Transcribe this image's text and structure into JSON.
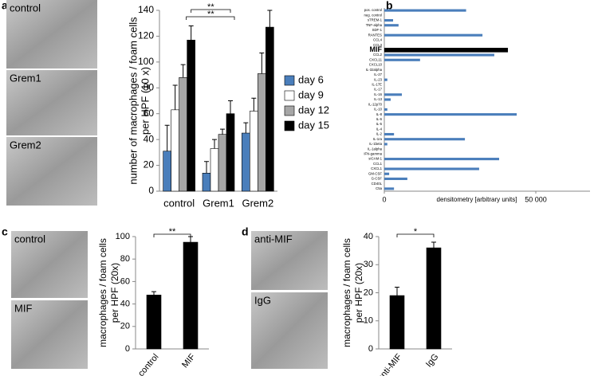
{
  "panel_labels": [
    "a",
    "b",
    "c",
    "d"
  ],
  "micrographs": {
    "a": [
      "control",
      "Grem1",
      "Grem2"
    ],
    "c": [
      "control",
      "MIF"
    ],
    "d": [
      "anti-MIF",
      "IgG"
    ]
  },
  "chart_data": [
    {
      "type": "bar",
      "ylabel": [
        "number of macrophages / foam cells",
        "per HPF (10 x)"
      ],
      "categories": [
        "control",
        "Grem1",
        "Grem2"
      ],
      "series": [
        {
          "name": "day 6",
          "color": "#4a7ebb",
          "values": [
            31,
            14,
            45
          ],
          "errors": [
            20,
            9,
            8
          ]
        },
        {
          "name": "day 9",
          "color": "#ffffff",
          "values": [
            63,
            33,
            62
          ],
          "errors": [
            19,
            7,
            10
          ]
        },
        {
          "name": "day 12",
          "color": "#a6a6a6",
          "values": [
            88,
            44,
            91
          ],
          "errors": [
            10,
            4,
            16
          ]
        },
        {
          "name": "day 15",
          "color": "#000000",
          "values": [
            117,
            60,
            127
          ],
          "errors": [
            11,
            10,
            13
          ]
        }
      ],
      "ylim": [
        0,
        140
      ],
      "yticks": [
        0,
        20,
        40,
        60,
        80,
        100,
        120,
        140
      ],
      "annotations": [
        "**",
        "**"
      ]
    },
    {
      "type": "hbar",
      "xlabel": "densitometry [arbitrary units]",
      "categories": [
        "pos. control",
        "neg. control",
        "sTREM-1",
        "TNF-alpha",
        "SDF-1",
        "RANTES",
        "CCL4",
        "CCL3",
        "MIF",
        "CCL2",
        "CXCL11",
        "CXCL10",
        "IL-32alpha",
        "IL-27",
        "IL-23",
        "IL-17E",
        "IL-17",
        "IL-16",
        "IL-13",
        "IL-12p70",
        "IL-10",
        "IL-8",
        "IL-6",
        "IL-5",
        "IL-4",
        "IL-2",
        "IL-1ra",
        "IL-1beta",
        "IL-1alpha",
        "IFN-gamma",
        "sICAM-1",
        "CCL1",
        "CXCL1",
        "GM-CSF",
        "G-CSF",
        "CD40L",
        "C5a"
      ],
      "values": [
        27000,
        0,
        2900,
        4700,
        0,
        32400,
        0,
        0,
        40800,
        36300,
        11800,
        0,
        0,
        0,
        1000,
        0,
        0,
        5800,
        2100,
        0,
        1000,
        43700,
        0,
        0,
        0,
        3200,
        26600,
        1000,
        0,
        0,
        37900,
        0,
        31300,
        1600,
        7600,
        0,
        3200
      ],
      "color": "#4a7ebb",
      "highlight": {
        "category": "MIF",
        "color": "#000000"
      },
      "xlim": [
        0,
        50000
      ],
      "xticks": [
        0,
        {
          "value": 50000,
          "label": "50 000"
        }
      ]
    },
    {
      "type": "bar",
      "ylabel": [
        "macrophages / foam cells",
        "per HPF (20x)"
      ],
      "categories": [
        "control",
        "MIF"
      ],
      "values": [
        48,
        95
      ],
      "errors": [
        3,
        5
      ],
      "color": "#000000",
      "ylim": [
        0,
        100
      ],
      "yticks": [
        0,
        20,
        40,
        60,
        80,
        100
      ],
      "annotations": [
        "**"
      ]
    },
    {
      "type": "bar",
      "ylabel": [
        "macrophages / foam cells",
        "per HPF (20x)"
      ],
      "categories": [
        "anti-MIF",
        "IgG"
      ],
      "values": [
        19,
        36
      ],
      "errors": [
        3,
        2
      ],
      "color": "#000000",
      "ylim": [
        0,
        40
      ],
      "yticks": [
        0,
        10,
        20,
        30,
        40
      ],
      "annotations": [
        "*"
      ]
    }
  ]
}
